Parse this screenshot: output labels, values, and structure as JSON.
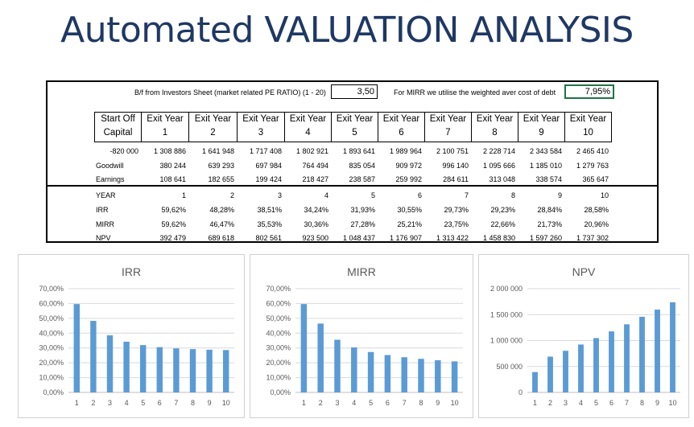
{
  "title": "Automated VALUATION ANALYSIS",
  "sheet": {
    "pe_label": "B/f from Investors Sheet (market related PE RATIO) (1 - 20)",
    "pe_value": "3,50",
    "mirr_label": "For MIRR we utilise the weighted aver cost of debt",
    "mirr_value": "7,95%",
    "header_top": [
      "Start Off",
      "Exit Year",
      "Exit Year",
      "Exit Year",
      "Exit Year",
      "Exit Year",
      "Exit Year",
      "Exit Year",
      "Exit Year",
      "Exit Year",
      "Exit Year"
    ],
    "header_bottom": [
      "Capital",
      "1",
      "2",
      "3",
      "4",
      "5",
      "6",
      "7",
      "8",
      "9",
      "10"
    ],
    "capital_row": [
      "-820 000",
      "1 308 886",
      "1 641 948",
      "1 717 408",
      "1 802 921",
      "1 893 641",
      "1 989 964",
      "2 100 751",
      "2 228 714",
      "2 343 584",
      "2 465 410"
    ],
    "goodwill": {
      "label": "Goodwill",
      "values": [
        "380 244",
        "639 293",
        "697 984",
        "764 494",
        "835 054",
        "909 972",
        "996 140",
        "1 095 666",
        "1 185 010",
        "1 279 763"
      ]
    },
    "earnings": {
      "label": "Earnings",
      "values": [
        "108 641",
        "182 655",
        "199 424",
        "218 427",
        "238 587",
        "259 992",
        "284 611",
        "313 048",
        "338 574",
        "365 647"
      ]
    },
    "year": {
      "label": "YEAR",
      "values": [
        "1",
        "2",
        "3",
        "4",
        "5",
        "6",
        "7",
        "8",
        "9",
        "10"
      ]
    },
    "irr": {
      "label": "IRR",
      "values": [
        "59,62%",
        "48,28%",
        "38,51%",
        "34,24%",
        "31,93%",
        "30,55%",
        "29,73%",
        "29,23%",
        "28,84%",
        "28,58%"
      ]
    },
    "mirr": {
      "label": "MIRR",
      "values": [
        "59,62%",
        "46,47%",
        "35,53%",
        "30,36%",
        "27,28%",
        "25,21%",
        "23,75%",
        "22,66%",
        "21,73%",
        "20,96%"
      ]
    },
    "npv": {
      "label": "NPV",
      "values": [
        "392 479",
        "689 618",
        "802 561",
        "923 500",
        "1 048 437",
        "1 176 907",
        "1 313 422",
        "1 458 830",
        "1 597 260",
        "1 737 302"
      ]
    }
  },
  "bar_color": "#5b9bd5",
  "chart_data": [
    {
      "type": "bar",
      "title": "IRR",
      "categories": [
        "1",
        "2",
        "3",
        "4",
        "5",
        "6",
        "7",
        "8",
        "9",
        "10"
      ],
      "values": [
        59.62,
        48.28,
        38.51,
        34.24,
        31.93,
        30.55,
        29.73,
        29.23,
        28.84,
        28.58
      ],
      "ylim": [
        0,
        70
      ],
      "yticks": [
        0,
        10,
        20,
        30,
        40,
        50,
        60,
        70
      ],
      "ytick_labels": [
        "0,00%",
        "10,00%",
        "20,00%",
        "30,00%",
        "40,00%",
        "50,00%",
        "60,00%",
        "70,00%"
      ],
      "grid": true
    },
    {
      "type": "bar",
      "title": "MIRR",
      "categories": [
        "1",
        "2",
        "3",
        "4",
        "5",
        "6",
        "7",
        "8",
        "9",
        "10"
      ],
      "values": [
        59.62,
        46.47,
        35.53,
        30.36,
        27.28,
        25.21,
        23.75,
        22.66,
        21.73,
        20.96
      ],
      "ylim": [
        0,
        70
      ],
      "yticks": [
        0,
        10,
        20,
        30,
        40,
        50,
        60,
        70
      ],
      "ytick_labels": [
        "0,00%",
        "10,00%",
        "20,00%",
        "30,00%",
        "40,00%",
        "50,00%",
        "60,00%",
        "70,00%"
      ],
      "grid": true
    },
    {
      "type": "bar",
      "title": "NPV",
      "categories": [
        "1",
        "2",
        "3",
        "4",
        "5",
        "6",
        "7",
        "8",
        "9",
        "10"
      ],
      "values": [
        392479,
        689618,
        802561,
        923500,
        1048437,
        1176907,
        1313422,
        1458830,
        1597260,
        1737302
      ],
      "ylim": [
        0,
        2000000
      ],
      "yticks": [
        0,
        500000,
        1000000,
        1500000,
        2000000
      ],
      "ytick_labels": [
        "0",
        "500 000",
        "1 000 000",
        "1 500 000",
        "2 000 000"
      ],
      "grid": true
    }
  ]
}
